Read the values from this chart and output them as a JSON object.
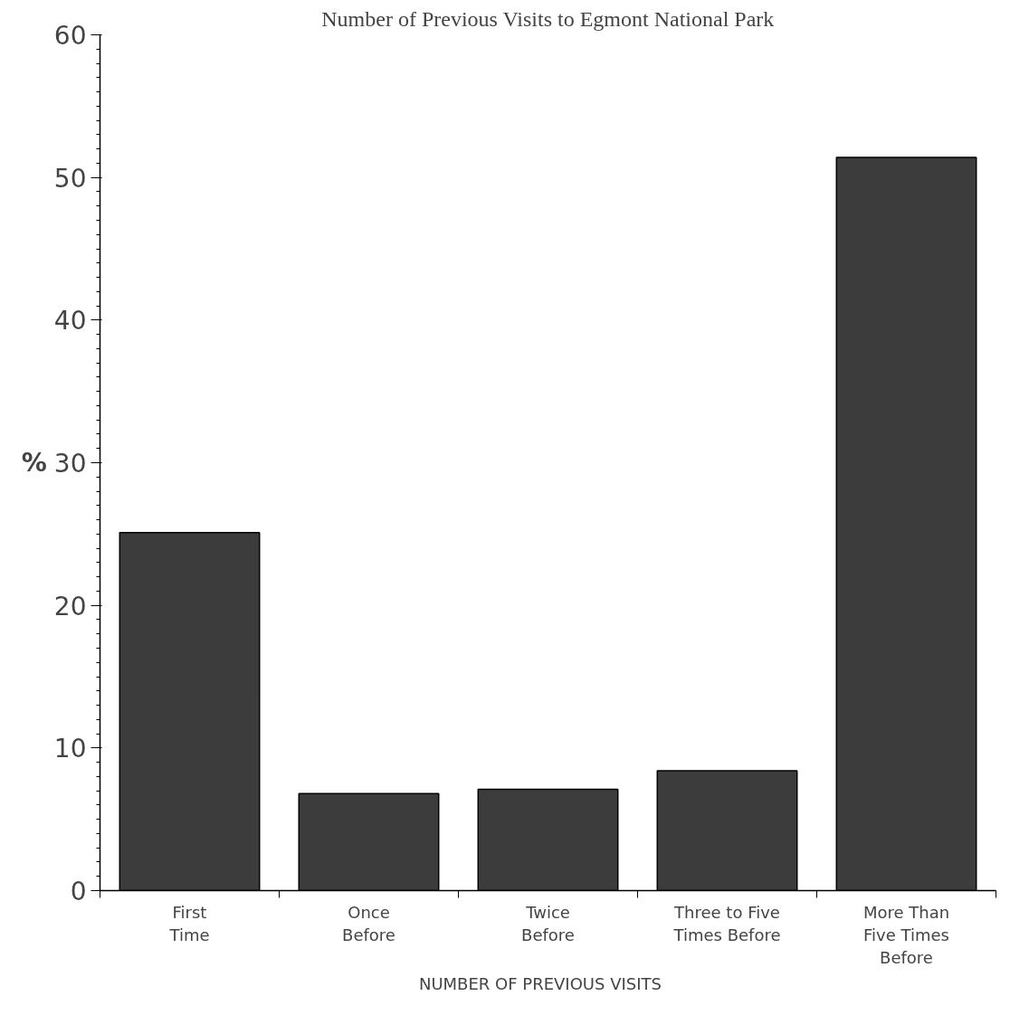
{
  "chart_data": {
    "type": "bar",
    "title": "Number of Previous Visits to Egmont National Park",
    "xlabel": "NUMBER  OF  PREVIOUS  VISITS",
    "ylabel": "%",
    "categories": [
      "First\nTime",
      "Once\nBefore",
      "Twice\nBefore",
      "Three to Five\nTimes Before",
      "More Than\nFive Times\nBefore"
    ],
    "values": [
      25.1,
      6.8,
      7.1,
      8.4,
      51.4
    ],
    "color": "#3c3c3c",
    "ylim": [
      0,
      60
    ],
    "yticks": [
      0,
      10,
      20,
      30,
      40,
      50,
      60
    ],
    "grid": false
  }
}
